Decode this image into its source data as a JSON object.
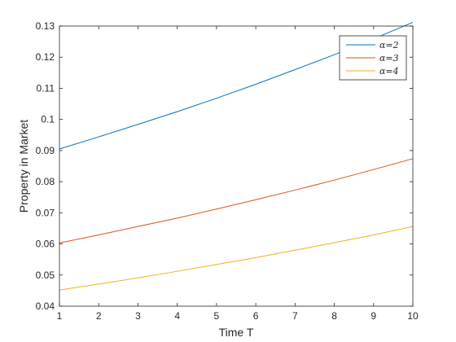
{
  "chart_data": {
    "type": "line",
    "title": "",
    "xlabel": "Time T",
    "ylabel": "Property in Market",
    "xlim": [
      1,
      10
    ],
    "ylim": [
      0.04,
      0.13
    ],
    "xticks": [
      1,
      2,
      3,
      4,
      5,
      6,
      7,
      8,
      9,
      10
    ],
    "yticks": [
      0.04,
      0.05,
      0.06,
      0.07,
      0.08,
      0.09,
      0.1,
      0.11,
      0.12,
      0.13
    ],
    "ytick_labels": [
      "0.04",
      "0.05",
      "0.06",
      "0.07",
      "0.08",
      "0.09",
      "0.1",
      "0.11",
      "0.12",
      "0.13"
    ],
    "legend_position": "top-right",
    "grid": false,
    "x": [
      1,
      2,
      3,
      4,
      5,
      6,
      7,
      8,
      9,
      10
    ],
    "series": [
      {
        "name": "α=2",
        "color": "#0072BD",
        "values": [
          0.0905,
          0.0944,
          0.0984,
          0.1025,
          0.1068,
          0.1113,
          0.116,
          0.1208,
          0.1259,
          0.1312
        ]
      },
      {
        "name": "α=3",
        "color": "#D95319",
        "values": [
          0.0603,
          0.0629,
          0.0656,
          0.0683,
          0.0712,
          0.0742,
          0.0773,
          0.0805,
          0.0839,
          0.0874
        ]
      },
      {
        "name": "α=4",
        "color": "#EDB120",
        "values": [
          0.0452,
          0.0471,
          0.0491,
          0.0512,
          0.0534,
          0.0556,
          0.058,
          0.0604,
          0.0629,
          0.0656
        ]
      }
    ]
  }
}
